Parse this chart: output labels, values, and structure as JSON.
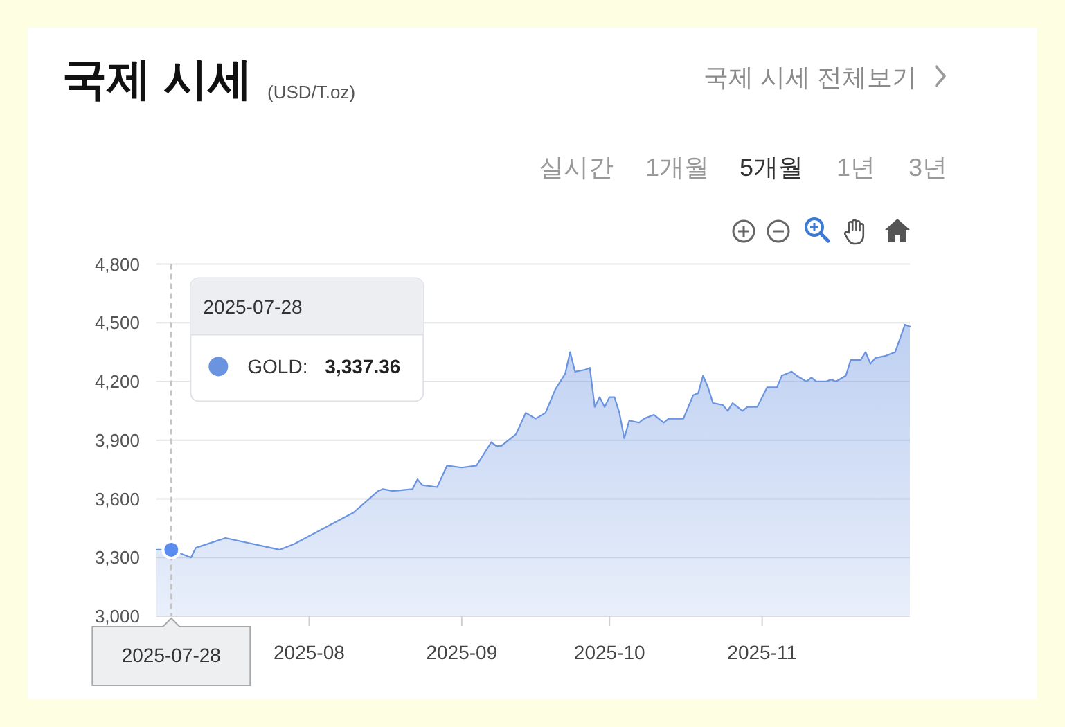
{
  "chart_data": {
    "type": "area",
    "title": "국제 시세",
    "subtitle": "(USD/T.oz)",
    "annotations": [
      "국제 시세 전체보기",
      "실시간",
      "1개월",
      "5개월",
      "1년",
      "3년",
      "2025-07-28",
      "3,337.36"
    ],
    "x": [
      "2025-07-01",
      "2025-07-04",
      "2025-07-08",
      "2025-07-09",
      "2025-07-15",
      "2025-07-26",
      "2025-07-29",
      "2025-08-10",
      "2025-08-15",
      "2025-08-16",
      "2025-08-18",
      "2025-08-22",
      "2025-08-23",
      "2025-08-24",
      "2025-08-27",
      "2025-08-29",
      "2025-09-01",
      "2025-09-04",
      "2025-09-07",
      "2025-09-08",
      "2025-09-09",
      "2025-09-12",
      "2025-09-14",
      "2025-09-16",
      "2025-09-18",
      "2025-09-20",
      "2025-09-22",
      "2025-09-23",
      "2025-09-24",
      "2025-09-26",
      "2025-09-27",
      "2025-09-28",
      "2025-09-29",
      "2025-09-30",
      "2025-10-01",
      "2025-10-02",
      "2025-10-03",
      "2025-10-04",
      "2025-10-05",
      "2025-10-07",
      "2025-10-08",
      "2025-10-10",
      "2025-10-12",
      "2025-10-13",
      "2025-10-16",
      "2025-10-18",
      "2025-10-19",
      "2025-10-20",
      "2025-10-21",
      "2025-10-22",
      "2025-10-24",
      "2025-10-25",
      "2025-10-26",
      "2025-10-28",
      "2025-10-29",
      "2025-10-31",
      "2025-11-02",
      "2025-11-04",
      "2025-11-05",
      "2025-11-07",
      "2025-11-08",
      "2025-11-10",
      "2025-11-11",
      "2025-11-12",
      "2025-11-14",
      "2025-11-15",
      "2025-11-16",
      "2025-11-18",
      "2025-11-19",
      "2025-11-21",
      "2025-11-22",
      "2025-11-23",
      "2025-11-24",
      "2025-11-26",
      "2025-11-28",
      "2025-11-29",
      "2025-11-30",
      "2025-12-01"
    ],
    "series": [
      {
        "name": "GOLD:",
        "color": "#6a93e0",
        "values": [
          3340,
          3340,
          3300,
          3350,
          3400,
          3340,
          3370,
          3530,
          3640,
          3650,
          3640,
          3650,
          3700,
          3670,
          3660,
          3770,
          3760,
          3770,
          3890,
          3870,
          3870,
          3930,
          4040,
          4010,
          4040,
          4160,
          4240,
          4350,
          4250,
          4260,
          4270,
          4070,
          4120,
          4070,
          4120,
          4120,
          4040,
          3910,
          4000,
          3990,
          4010,
          4030,
          3990,
          4010,
          4010,
          4130,
          4140,
          4230,
          4170,
          4090,
          4080,
          4050,
          4090,
          4050,
          4070,
          4070,
          4170,
          4170,
          4230,
          4250,
          4230,
          4200,
          4220,
          4200,
          4200,
          4210,
          4200,
          4230,
          4310,
          4310,
          4350,
          4290,
          4320,
          4330,
          4350,
          4420,
          4490,
          4480
        ]
      },
      {
        "type": "scatter",
        "x": [
          "2025-07-04"
        ],
        "values": [
          3340
        ],
        "color": "#5b8def",
        "marker": "circle"
      }
    ],
    "ref_lines": [
      {
        "axis": "x",
        "value": "2025-07-04",
        "label": "2025-07-28",
        "color": "#c4c4c4",
        "line_style": "dashed"
      }
    ],
    "xlim": [
      "2025-07-01",
      "2025-12-01"
    ],
    "xticks": [
      "2025-08",
      "2025-09",
      "2025-10",
      "2025-11"
    ],
    "ylim": [
      3000,
      4800
    ],
    "yticks": [
      {
        "value": 3000,
        "label": "3,000"
      },
      {
        "value": 3300,
        "label": "3,300"
      },
      {
        "value": 3600,
        "label": "3,600"
      },
      {
        "value": 3900,
        "label": "3,900"
      },
      {
        "value": 4200,
        "label": "4,200"
      },
      {
        "value": 4500,
        "label": "4,500"
      },
      {
        "value": 4800,
        "label": "4,800"
      }
    ],
    "grid": "y"
  }
}
